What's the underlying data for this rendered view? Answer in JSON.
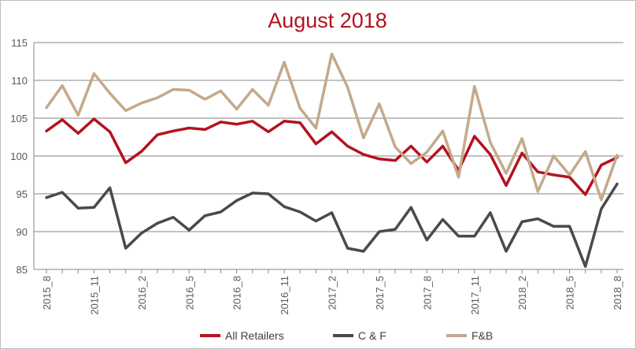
{
  "chart_data": {
    "type": "line",
    "title": "August 2018",
    "title_color": "#b4121f",
    "xlabel": "",
    "ylabel": "",
    "ylim": [
      85,
      115
    ],
    "yticks": [
      85,
      90,
      95,
      100,
      105,
      110,
      115
    ],
    "grid": true,
    "legend": "bottom",
    "x": [
      "2015_8",
      "2015_9",
      "2015_10",
      "2015_11",
      "2015_12",
      "2016_1",
      "2016_2",
      "2016_3",
      "2016_4",
      "2016_5",
      "2016_6",
      "2016_7",
      "2016_8",
      "2016_9",
      "2016_10",
      "2016_11",
      "2016_12",
      "2017_1",
      "2017_2",
      "2017_3",
      "2017_4",
      "2017_5",
      "2017_6",
      "2017_7",
      "2017_8",
      "2017_9",
      "2017_10",
      "2017_11",
      "2017_12",
      "2018_1",
      "2018_2",
      "2018_3",
      "2018_4",
      "2018_5",
      "2018_6",
      "2018_7",
      "2018_8"
    ],
    "x_tick_labels": [
      "2015_8",
      "2015_11",
      "2016_2",
      "2016_5",
      "2016_8",
      "2016_11",
      "2017_2",
      "2017_5",
      "2017_8",
      "2017_11",
      "2018_2",
      "2018_5",
      "2018_8"
    ],
    "series": [
      {
        "name": "All Retailers",
        "color": "#b4121f",
        "values": [
          103.3,
          104.8,
          103.0,
          104.9,
          103.2,
          99.1,
          100.6,
          102.8,
          103.3,
          103.7,
          103.5,
          104.5,
          104.2,
          104.6,
          103.2,
          104.6,
          104.4,
          101.6,
          103.2,
          101.3,
          100.2,
          99.6,
          99.4,
          101.3,
          99.2,
          101.3,
          98.1,
          102.6,
          100.2,
          96.1,
          100.4,
          97.9,
          97.5,
          97.2,
          94.9,
          98.8,
          99.8
        ]
      },
      {
        "name": "C & F",
        "color": "#4a4a4a",
        "values": [
          94.5,
          95.2,
          93.1,
          93.2,
          95.8,
          87.8,
          89.8,
          91.1,
          91.9,
          90.2,
          92.1,
          92.6,
          94.1,
          95.1,
          95.0,
          93.3,
          92.6,
          91.4,
          92.5,
          87.8,
          87.4,
          90.0,
          90.3,
          93.2,
          88.9,
          91.6,
          89.4,
          89.4,
          92.5,
          87.4,
          91.3,
          91.7,
          90.7,
          90.7,
          85.4,
          93.0,
          96.3
        ]
      },
      {
        "name": "F&B",
        "color": "#c4a98b",
        "values": [
          106.4,
          109.3,
          105.4,
          110.9,
          108.3,
          106.0,
          107.0,
          107.7,
          108.8,
          108.7,
          107.5,
          108.6,
          106.2,
          108.8,
          106.7,
          112.4,
          106.3,
          103.7,
          113.5,
          109.1,
          102.4,
          106.9,
          101.2,
          99.0,
          100.5,
          103.3,
          97.2,
          109.2,
          101.8,
          97.7,
          102.3,
          95.3,
          100.0,
          97.5,
          100.6,
          94.2,
          100.1
        ]
      }
    ]
  }
}
